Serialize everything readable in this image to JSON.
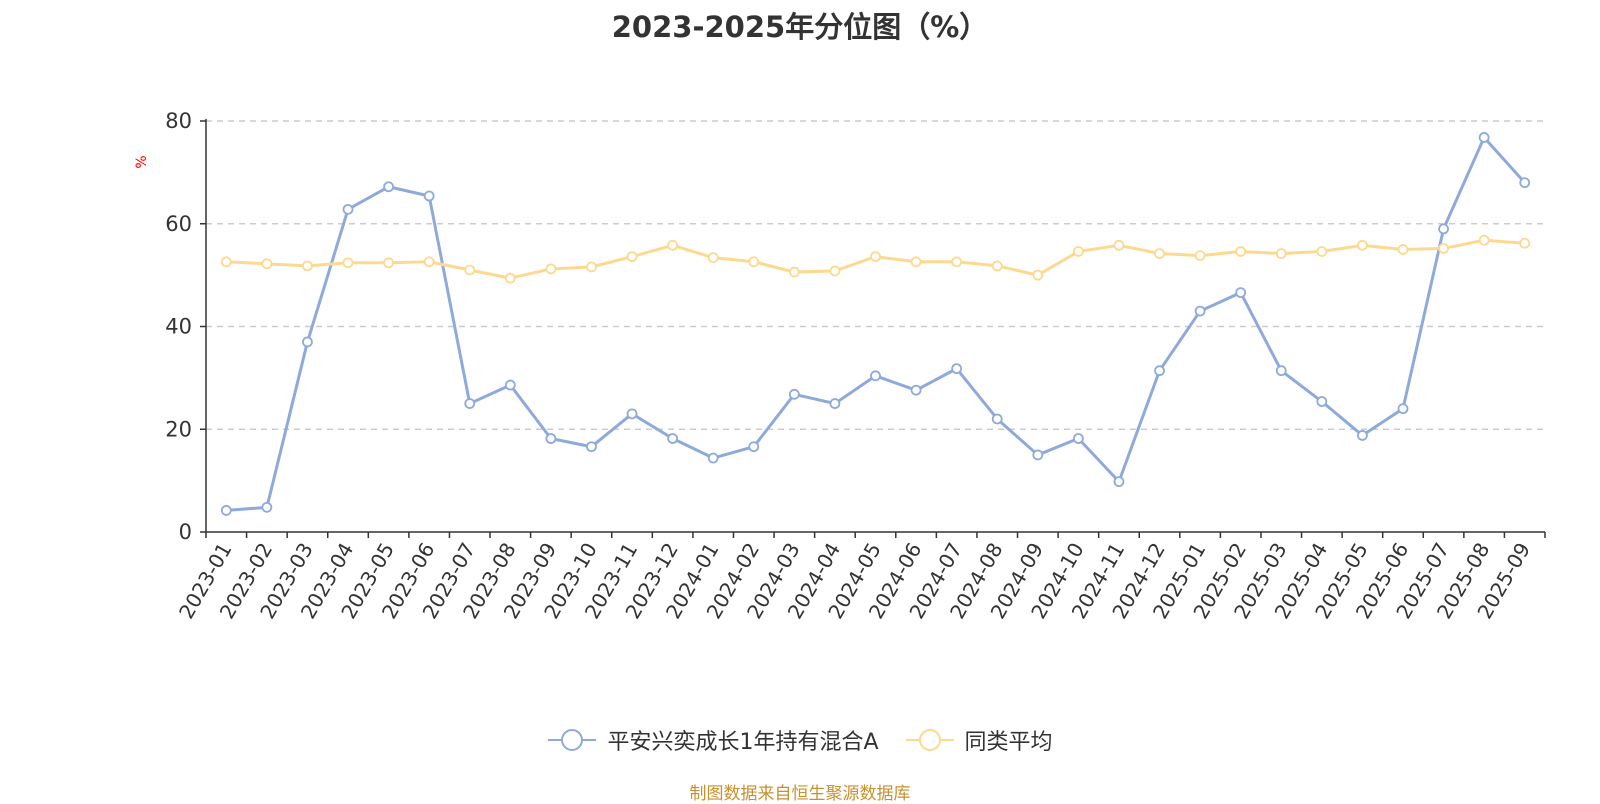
{
  "chart_data": {
    "type": "line",
    "title": "2023-2025年分位图（%）",
    "ylabel": "%",
    "xlabel": "",
    "ylim": [
      0,
      80
    ],
    "yticks": [
      0,
      20,
      40,
      60,
      80
    ],
    "grid": true,
    "legend_position": "bottom",
    "categories": [
      "2023-01",
      "2023-02",
      "2023-03",
      "2023-04",
      "2023-05",
      "2023-06",
      "2023-07",
      "2023-08",
      "2023-09",
      "2023-10",
      "2023-11",
      "2023-12",
      "2024-01",
      "2024-02",
      "2024-03",
      "2024-04",
      "2024-05",
      "2024-06",
      "2024-07",
      "2024-08",
      "2024-09",
      "2024-10",
      "2024-11",
      "2024-12",
      "2025-01",
      "2025-02",
      "2025-03",
      "2025-04",
      "2025-05",
      "2025-06",
      "2025-07",
      "2025-08",
      "2025-09"
    ],
    "series": [
      {
        "name": "平安兴奕成长1年持有混合A",
        "color": "#8eaadb",
        "values": [
          4.2,
          4.8,
          37.0,
          62.8,
          67.2,
          65.4,
          25.0,
          28.6,
          18.2,
          16.6,
          23.0,
          18.2,
          14.4,
          16.6,
          26.8,
          25.0,
          30.4,
          27.6,
          31.8,
          22.0,
          15.0,
          18.2,
          9.8,
          31.4,
          43.0,
          46.6,
          31.4,
          25.4,
          18.8,
          24.0,
          59.0,
          76.8,
          68.0
        ]
      },
      {
        "name": "同类平均",
        "color": "#fdd98f",
        "values": [
          52.6,
          52.2,
          51.8,
          52.4,
          52.4,
          52.6,
          51.0,
          49.4,
          51.2,
          51.6,
          53.6,
          55.8,
          53.4,
          52.6,
          50.6,
          50.8,
          53.6,
          52.6,
          52.6,
          51.8,
          50.0,
          54.6,
          55.8,
          54.2,
          53.8,
          54.6,
          54.2,
          54.6,
          55.8,
          55.0,
          55.2,
          56.8,
          56.2
        ]
      }
    ]
  },
  "footer": {
    "source_note": "制图数据来自恒生聚源数据库"
  }
}
